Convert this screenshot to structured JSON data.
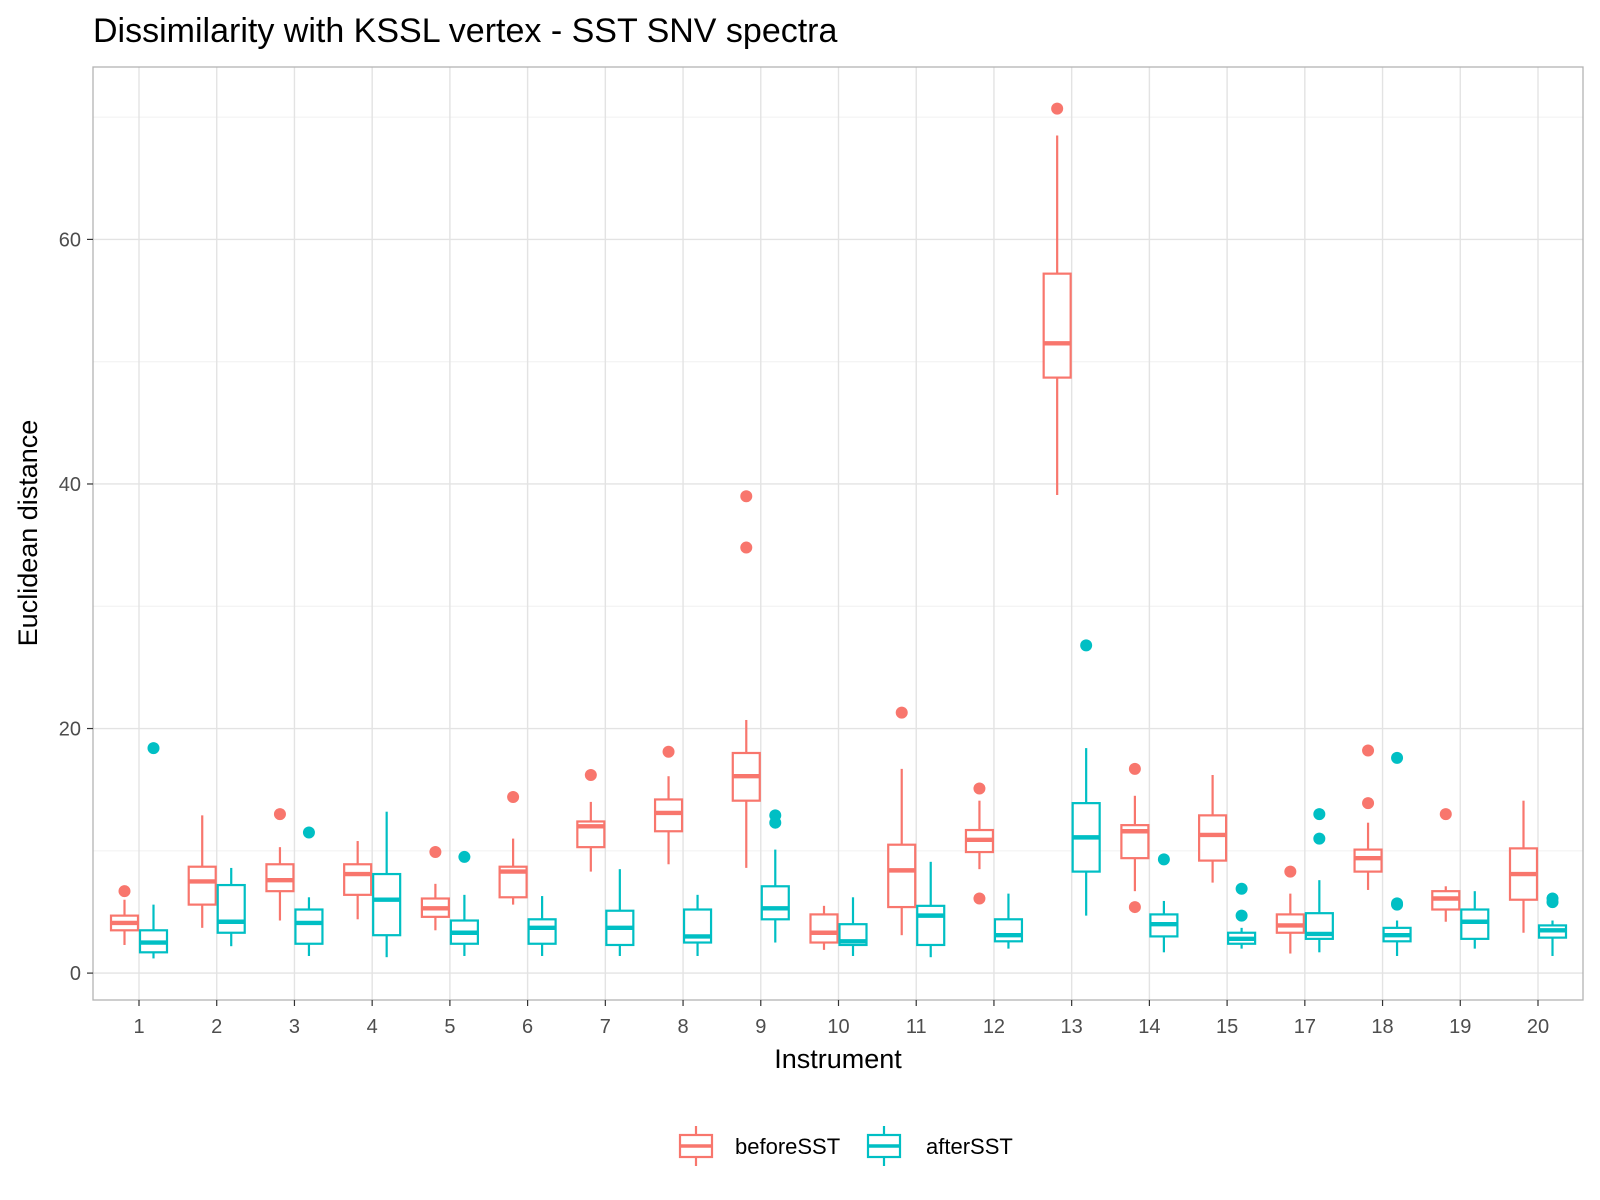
{
  "chart_data": {
    "type": "boxplot",
    "title": "Dissimilarity with KSSL vertex - SST SNV spectra",
    "xlabel": "Instrument",
    "ylabel": "Euclidean distance",
    "ylim": [
      -2.2,
      74.1
    ],
    "yticks": [
      0,
      20,
      40,
      60
    ],
    "grid": true,
    "legend_position": "bottom",
    "categories": [
      "1",
      "2",
      "3",
      "4",
      "5",
      "6",
      "7",
      "8",
      "9",
      "10",
      "11",
      "12",
      "13",
      "14",
      "15",
      "17",
      "18",
      "19",
      "20"
    ],
    "series": [
      {
        "name": "beforeSST",
        "color": "#F8766D",
        "boxes": [
          {
            "low": 2.3,
            "q1": 3.5,
            "median": 4.1,
            "q3": 4.7,
            "high": 6.0,
            "outliers": [
              6.7
            ]
          },
          {
            "low": 3.7,
            "q1": 5.6,
            "median": 7.5,
            "q3": 8.7,
            "high": 12.9,
            "outliers": []
          },
          {
            "low": 4.3,
            "q1": 6.7,
            "median": 7.6,
            "q3": 8.9,
            "high": 10.3,
            "outliers": [
              13.0
            ]
          },
          {
            "low": 4.4,
            "q1": 6.4,
            "median": 8.1,
            "q3": 8.9,
            "high": 10.8,
            "outliers": []
          },
          {
            "low": 3.5,
            "q1": 4.6,
            "median": 5.3,
            "q3": 6.1,
            "high": 7.3,
            "outliers": [
              9.9
            ]
          },
          {
            "low": 5.6,
            "q1": 6.2,
            "median": 8.3,
            "q3": 8.7,
            "high": 11.0,
            "outliers": [
              14.4
            ]
          },
          {
            "low": 8.3,
            "q1": 10.3,
            "median": 12.0,
            "q3": 12.4,
            "high": 14.0,
            "outliers": [
              16.2
            ]
          },
          {
            "low": 8.9,
            "q1": 11.6,
            "median": 13.1,
            "q3": 14.2,
            "high": 16.1,
            "outliers": [
              18.1
            ]
          },
          {
            "low": 8.6,
            "q1": 14.1,
            "median": 16.1,
            "q3": 18.0,
            "high": 20.7,
            "outliers": [
              34.8,
              39.0
            ]
          },
          {
            "low": 1.9,
            "q1": 2.5,
            "median": 3.3,
            "q3": 4.8,
            "high": 5.5,
            "outliers": []
          },
          {
            "low": 3.1,
            "q1": 5.4,
            "median": 8.4,
            "q3": 10.5,
            "high": 16.7,
            "outliers": [
              21.3
            ]
          },
          {
            "low": 8.5,
            "q1": 9.9,
            "median": 10.9,
            "q3": 11.7,
            "high": 14.1,
            "outliers": [
              15.1,
              6.1
            ]
          },
          {
            "low": 39.1,
            "q1": 48.7,
            "median": 51.5,
            "q3": 57.2,
            "high": 68.5,
            "outliers": [
              70.7
            ]
          },
          {
            "low": 6.7,
            "q1": 9.4,
            "median": 11.6,
            "q3": 12.1,
            "high": 14.5,
            "outliers": [
              16.7,
              5.4
            ]
          },
          {
            "low": 7.4,
            "q1": 9.2,
            "median": 11.3,
            "q3": 12.9,
            "high": 16.2,
            "outliers": []
          },
          {
            "low": 1.6,
            "q1": 3.3,
            "median": 3.9,
            "q3": 4.8,
            "high": 6.5,
            "outliers": [
              8.3
            ]
          },
          {
            "low": 6.8,
            "q1": 8.3,
            "median": 9.4,
            "q3": 10.1,
            "high": 12.3,
            "outliers": [
              13.9,
              18.2
            ]
          },
          {
            "low": 4.2,
            "q1": 5.2,
            "median": 6.1,
            "q3": 6.7,
            "high": 7.1,
            "outliers": [
              13.0
            ]
          },
          {
            "low": 3.3,
            "q1": 6.0,
            "median": 8.1,
            "q3": 10.2,
            "high": 14.1,
            "outliers": []
          }
        ]
      },
      {
        "name": "afterSST",
        "color": "#00BFC4",
        "boxes": [
          {
            "low": 1.2,
            "q1": 1.7,
            "median": 2.5,
            "q3": 3.5,
            "high": 5.6,
            "outliers": [
              18.4
            ]
          },
          {
            "low": 2.2,
            "q1": 3.3,
            "median": 4.2,
            "q3": 7.2,
            "high": 8.6,
            "outliers": []
          },
          {
            "low": 1.4,
            "q1": 2.4,
            "median": 4.1,
            "q3": 5.2,
            "high": 6.2,
            "outliers": [
              11.5
            ]
          },
          {
            "low": 1.3,
            "q1": 3.1,
            "median": 6.0,
            "q3": 8.1,
            "high": 13.2,
            "outliers": []
          },
          {
            "low": 1.4,
            "q1": 2.4,
            "median": 3.3,
            "q3": 4.3,
            "high": 6.4,
            "outliers": [
              9.5
            ]
          },
          {
            "low": 1.4,
            "q1": 2.4,
            "median": 3.7,
            "q3": 4.4,
            "high": 6.3,
            "outliers": []
          },
          {
            "low": 1.4,
            "q1": 2.3,
            "median": 3.7,
            "q3": 5.1,
            "high": 8.5,
            "outliers": []
          },
          {
            "low": 1.4,
            "q1": 2.5,
            "median": 3.0,
            "q3": 5.2,
            "high": 6.4,
            "outliers": []
          },
          {
            "low": 2.5,
            "q1": 4.4,
            "median": 5.3,
            "q3": 7.1,
            "high": 10.1,
            "outliers": [
              12.3,
              12.9
            ]
          },
          {
            "low": 1.4,
            "q1": 2.3,
            "median": 2.6,
            "q3": 4.0,
            "high": 6.2,
            "outliers": []
          },
          {
            "low": 1.3,
            "q1": 2.3,
            "median": 4.7,
            "q3": 5.5,
            "high": 9.1,
            "outliers": []
          },
          {
            "low": 2.0,
            "q1": 2.6,
            "median": 3.1,
            "q3": 4.4,
            "high": 6.5,
            "outliers": []
          },
          {
            "low": 4.7,
            "q1": 8.3,
            "median": 11.1,
            "q3": 13.9,
            "high": 18.4,
            "outliers": [
              26.8
            ]
          },
          {
            "low": 1.7,
            "q1": 3.0,
            "median": 4.0,
            "q3": 4.8,
            "high": 5.9,
            "outliers": [
              9.3
            ]
          },
          {
            "low": 2.0,
            "q1": 2.4,
            "median": 2.8,
            "q3": 3.3,
            "high": 3.7,
            "outliers": [
              4.7,
              6.9
            ]
          },
          {
            "low": 1.7,
            "q1": 2.8,
            "median": 3.2,
            "q3": 4.9,
            "high": 7.6,
            "outliers": [
              11.0,
              13.0
            ]
          },
          {
            "low": 1.4,
            "q1": 2.6,
            "median": 3.1,
            "q3": 3.7,
            "high": 4.3,
            "outliers": [
              5.6,
              5.7,
              17.6
            ]
          },
          {
            "low": 2.0,
            "q1": 2.8,
            "median": 4.2,
            "q3": 5.2,
            "high": 6.7,
            "outliers": []
          },
          {
            "low": 1.4,
            "q1": 2.9,
            "median": 3.5,
            "q3": 3.9,
            "high": 4.3,
            "outliers": [
              5.8,
              6.1
            ]
          }
        ]
      }
    ]
  }
}
